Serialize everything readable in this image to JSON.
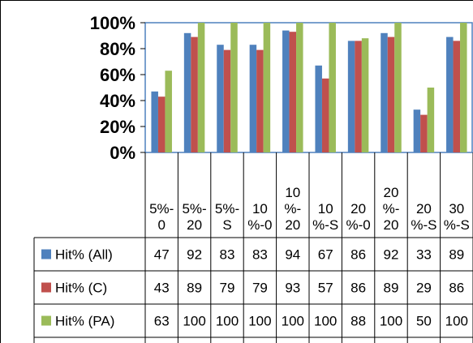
{
  "chart_data": {
    "type": "bar",
    "title": "",
    "xlabel": "",
    "ylabel": "",
    "ylim": [
      0,
      100
    ],
    "yticks": [
      "0%",
      "20%",
      "40%",
      "60%",
      "80%",
      "100%"
    ],
    "legend_placement": "left-table",
    "grid": false,
    "categories": [
      [
        "5%-",
        "0"
      ],
      [
        "5%-",
        "20"
      ],
      [
        "5%-",
        "S"
      ],
      [
        "10",
        "%-0"
      ],
      [
        "10",
        "%-",
        "20"
      ],
      [
        "10",
        "%-S"
      ],
      [
        "20",
        "%-0"
      ],
      [
        "20",
        "%-",
        "20"
      ],
      [
        "20",
        "%-S"
      ],
      [
        "30",
        "%-S"
      ]
    ],
    "series": [
      {
        "name": "Hit% (All)",
        "color": "#4f81bd",
        "values": [
          47,
          92,
          83,
          83,
          94,
          67,
          86,
          92,
          33,
          89
        ]
      },
      {
        "name": "Hit% (C)",
        "color": "#c0504d",
        "values": [
          43,
          89,
          79,
          79,
          93,
          57,
          86,
          89,
          29,
          86
        ]
      },
      {
        "name": "Hit% (PA)",
        "color": "#9bbb59",
        "values": [
          63,
          100,
          100,
          100,
          100,
          100,
          88,
          100,
          50,
          100
        ]
      }
    ]
  }
}
